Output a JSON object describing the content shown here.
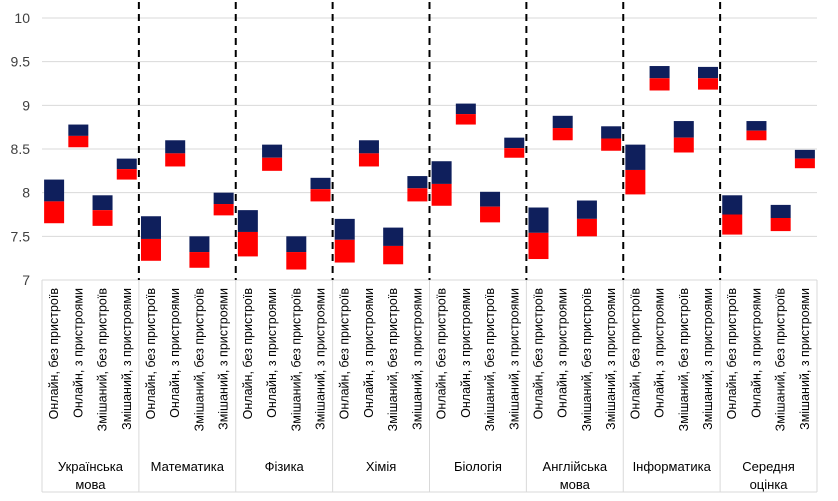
{
  "chart_data": {
    "type": "bar",
    "subtype": "floating-range",
    "ylim": [
      7,
      10
    ],
    "yticks": [
      "7",
      "7.5",
      "8",
      "8.5",
      "9",
      "9.5",
      "10"
    ],
    "grid": true,
    "legend": "none",
    "colors": {
      "upper": "#0f1f5c",
      "lower": "#ff0000",
      "grid": "#d9d9d9",
      "separator": "#000000"
    },
    "categories": [
      "Онлайн, без пристроїв",
      "Онлайн, з пристроями",
      "Змішаний, без пристроїв",
      "Змішаний, з пристроями"
    ],
    "groups": [
      {
        "name": "Українська мова",
        "lines": [
          "Українська",
          "мова"
        ],
        "bars": [
          {
            "low": 7.65,
            "mid": 7.9,
            "high": 8.15
          },
          {
            "low": 8.52,
            "mid": 8.65,
            "high": 8.78
          },
          {
            "low": 7.62,
            "mid": 7.8,
            "high": 7.97
          },
          {
            "low": 8.15,
            "mid": 8.27,
            "high": 8.39
          }
        ]
      },
      {
        "name": "Математика",
        "lines": [
          "Математика"
        ],
        "bars": [
          {
            "low": 7.22,
            "mid": 7.47,
            "high": 7.73
          },
          {
            "low": 8.3,
            "mid": 8.45,
            "high": 8.6
          },
          {
            "low": 7.14,
            "mid": 7.32,
            "high": 7.5
          },
          {
            "low": 7.74,
            "mid": 7.87,
            "high": 8.0
          }
        ]
      },
      {
        "name": "Фізика",
        "lines": [
          "Фізика"
        ],
        "bars": [
          {
            "low": 7.27,
            "mid": 7.55,
            "high": 7.8
          },
          {
            "low": 8.25,
            "mid": 8.4,
            "high": 8.55
          },
          {
            "low": 7.12,
            "mid": 7.32,
            "high": 7.5
          },
          {
            "low": 7.9,
            "mid": 8.04,
            "high": 8.17
          }
        ]
      },
      {
        "name": "Хімія",
        "lines": [
          "Хімія"
        ],
        "bars": [
          {
            "low": 7.2,
            "mid": 7.46,
            "high": 7.7
          },
          {
            "low": 8.3,
            "mid": 8.45,
            "high": 8.6
          },
          {
            "low": 7.18,
            "mid": 7.39,
            "high": 7.6
          },
          {
            "low": 7.9,
            "mid": 8.05,
            "high": 8.19
          }
        ]
      },
      {
        "name": "Біологія",
        "lines": [
          "Біологія"
        ],
        "bars": [
          {
            "low": 7.85,
            "mid": 8.1,
            "high": 8.36
          },
          {
            "low": 8.78,
            "mid": 8.9,
            "high": 9.02
          },
          {
            "low": 7.66,
            "mid": 7.84,
            "high": 8.01
          },
          {
            "low": 8.4,
            "mid": 8.51,
            "high": 8.63
          }
        ]
      },
      {
        "name": "Англійська мова",
        "lines": [
          "Англійська",
          "мова"
        ],
        "bars": [
          {
            "low": 7.24,
            "mid": 7.54,
            "high": 7.83
          },
          {
            "low": 8.6,
            "mid": 8.74,
            "high": 8.88
          },
          {
            "low": 7.5,
            "mid": 7.7,
            "high": 7.91
          },
          {
            "low": 8.48,
            "mid": 8.62,
            "high": 8.76
          }
        ]
      },
      {
        "name": "Інформатика",
        "lines": [
          "Інформатика"
        ],
        "bars": [
          {
            "low": 7.98,
            "mid": 8.26,
            "high": 8.55
          },
          {
            "low": 9.17,
            "mid": 9.31,
            "high": 9.45
          },
          {
            "low": 8.46,
            "mid": 8.63,
            "high": 8.82
          },
          {
            "low": 9.18,
            "mid": 9.31,
            "high": 9.44
          }
        ]
      },
      {
        "name": "Середня оцінка",
        "lines": [
          "Середня",
          "оцінка"
        ],
        "bars": [
          {
            "low": 7.52,
            "mid": 7.75,
            "high": 7.97
          },
          {
            "low": 8.6,
            "mid": 8.71,
            "high": 8.82
          },
          {
            "low": 7.56,
            "mid": 7.71,
            "high": 7.86
          },
          {
            "low": 8.28,
            "mid": 8.39,
            "high": 8.49
          }
        ]
      }
    ]
  }
}
